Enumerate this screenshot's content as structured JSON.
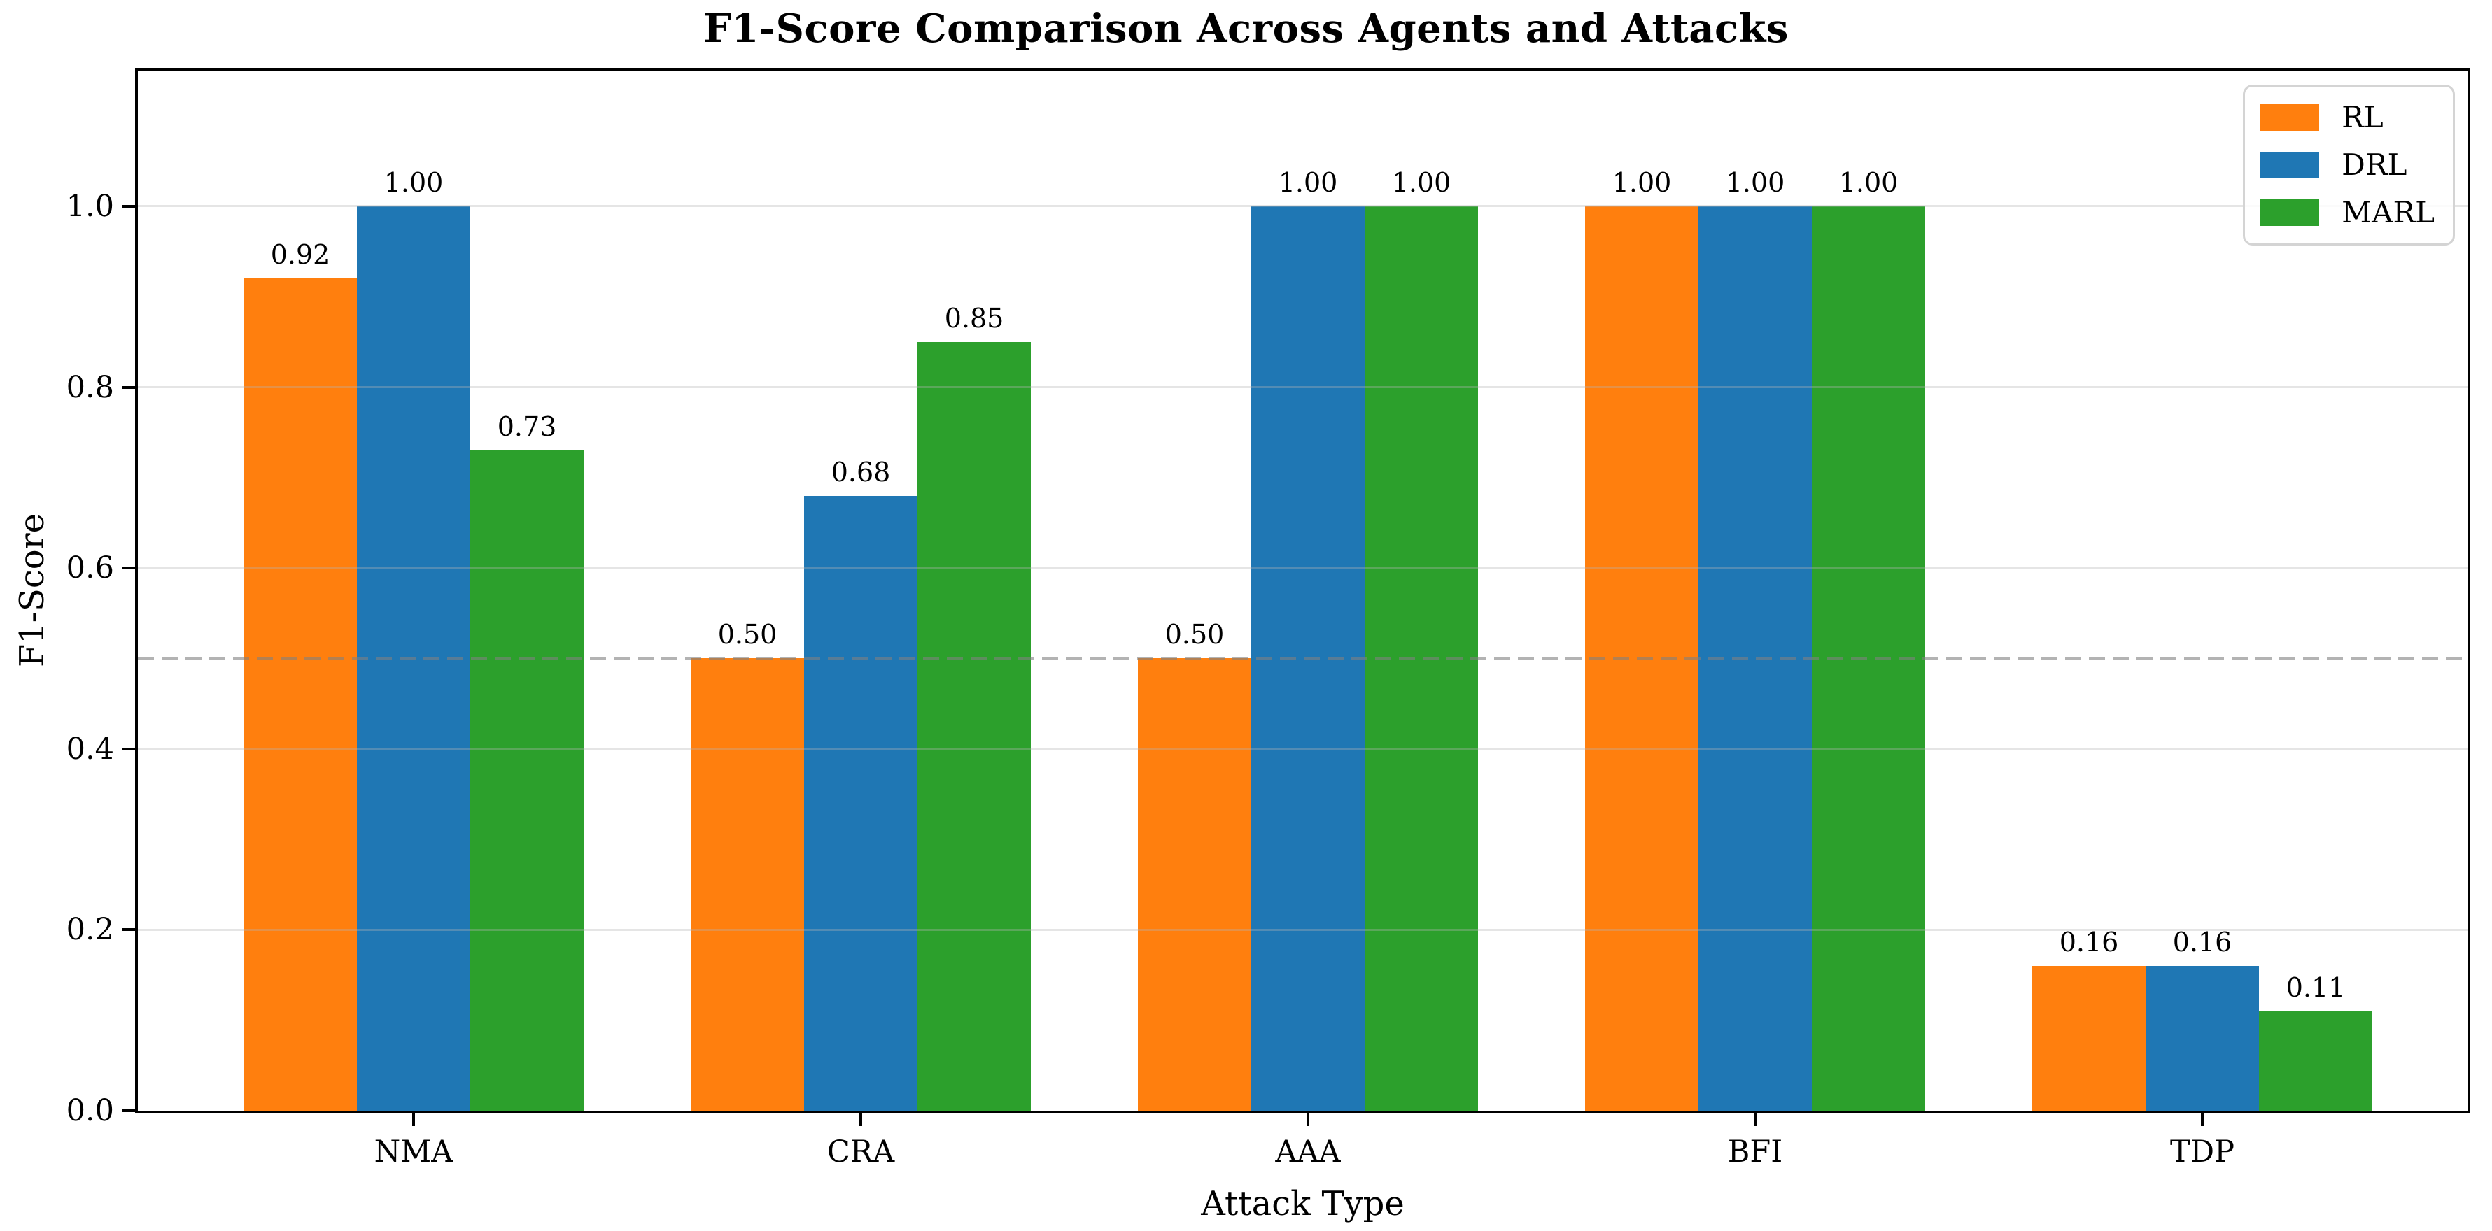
{
  "chart_data": {
    "type": "bar",
    "title": "F1-Score Comparison Across Agents and Attacks",
    "xlabel": "Attack Type",
    "ylabel": "F1-Score",
    "categories": [
      "NMA",
      "CRA",
      "AAA",
      "BFI",
      "TDP"
    ],
    "series": [
      {
        "name": "RL",
        "color": "#ff7f0e",
        "values": [
          0.92,
          0.5,
          0.5,
          1.0,
          0.16
        ],
        "labels": [
          "0.92",
          "0.50",
          "0.50",
          "1.00",
          "0.16"
        ]
      },
      {
        "name": "DRL",
        "color": "#1f77b4",
        "values": [
          1.0,
          0.68,
          1.0,
          1.0,
          0.16
        ],
        "labels": [
          "1.00",
          "0.68",
          "1.00",
          "1.00",
          "0.16"
        ]
      },
      {
        "name": "MARL",
        "color": "#2ca02c",
        "values": [
          0.73,
          0.85,
          1.0,
          1.0,
          0.11
        ],
        "labels": [
          "0.73",
          "0.85",
          "1.00",
          "1.00",
          "0.11"
        ]
      }
    ],
    "ylim": [
      0,
      1.15
    ],
    "yticks": [
      0.0,
      0.2,
      0.4,
      0.6,
      0.8,
      1.0
    ],
    "ytick_labels": [
      "0.0",
      "0.2",
      "0.4",
      "0.6",
      "0.8",
      "1.0"
    ],
    "grid": true,
    "grid_color": "rgba(180,180,180,0.35)",
    "reference_line": {
      "y": 0.5,
      "style": "dashed",
      "color": "rgba(128,128,128,0.60)"
    },
    "legend": {
      "position": "upper right",
      "entries": [
        "RL",
        "DRL",
        "MARL"
      ]
    },
    "axis_color": "#000000"
  }
}
